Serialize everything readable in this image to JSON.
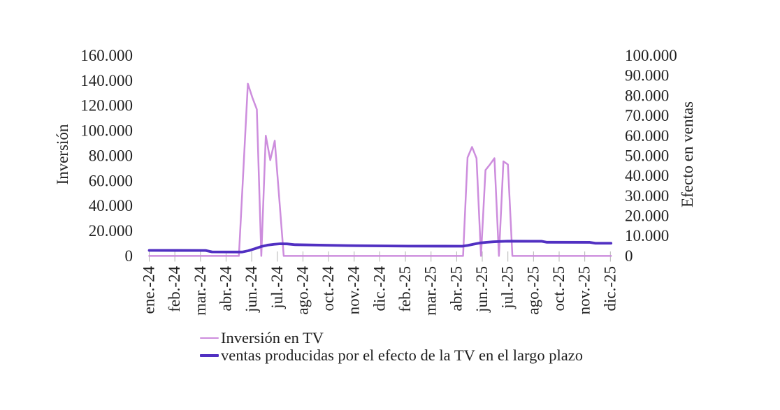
{
  "chart_data": {
    "type": "line",
    "title": "",
    "x_axis": {
      "unit": "date",
      "start_date": "2024-01-01",
      "end_date": "2025-12-22",
      "tick_interval_days": 40,
      "tick_labels": [
        "ene.-24",
        "feb.-24",
        "mar.-24",
        "abr.-24",
        "jun.-24",
        "jul.-24",
        "ago.-24",
        "oct.-24",
        "nov.-24",
        "dic.-24",
        "feb.-25",
        "mar.-25",
        "abr.-25",
        "jun.-25",
        "jul.-25",
        "ago.-25",
        "oct.-25",
        "nov.-25",
        "dic.-25"
      ]
    },
    "y_left": {
      "title": "Inversión",
      "min": 0,
      "max": 160000,
      "step": 20000,
      "tick_labels": [
        "0",
        "20.000",
        "40.000",
        "60.000",
        "80.000",
        "100.000",
        "120.000",
        "140.000",
        "160.000"
      ]
    },
    "y_right": {
      "title": "Efecto en ventas",
      "min": 0,
      "max": 100000,
      "step": 10000,
      "tick_labels": [
        "0",
        "10.000",
        "20.000",
        "30.000",
        "40.000",
        "50.000",
        "60.000",
        "70.000",
        "80.000",
        "90.000",
        "100.000"
      ]
    },
    "grid": "off",
    "legend_position": "bottom",
    "tick_color": "#b3b3b3",
    "text_color": "#1f1f1f",
    "series": [
      {
        "name": "Inversión en TV",
        "axis": "left",
        "color": "#cd8ddd",
        "stroke_width": 2.5,
        "points": [
          [
            "2024-01-01",
            0
          ],
          [
            "2024-05-20",
            0
          ],
          [
            "2024-05-27",
            68500
          ],
          [
            "2024-06-03",
            137500
          ],
          [
            "2024-06-10",
            126500
          ],
          [
            "2024-06-17",
            117000
          ],
          [
            "2024-06-24",
            0
          ],
          [
            "2024-07-01",
            96000
          ],
          [
            "2024-07-08",
            76500
          ],
          [
            "2024-07-15",
            92000
          ],
          [
            "2024-07-22",
            46000
          ],
          [
            "2024-07-29",
            0
          ],
          [
            "2025-05-05",
            0
          ],
          [
            "2025-05-12",
            78500
          ],
          [
            "2025-05-19",
            87000
          ],
          [
            "2025-05-26",
            78000
          ],
          [
            "2025-06-02",
            0
          ],
          [
            "2025-06-09",
            68500
          ],
          [
            "2025-06-16",
            73000
          ],
          [
            "2025-06-23",
            78000
          ],
          [
            "2025-06-30",
            0
          ],
          [
            "2025-07-07",
            75500
          ],
          [
            "2025-07-14",
            73000
          ],
          [
            "2025-07-21",
            0
          ],
          [
            "2025-12-22",
            0
          ]
        ]
      },
      {
        "name": "ventas producidas por el efecto de la TV en el largo plazo",
        "axis": "right",
        "color": "#5130c2",
        "stroke_width": 3.8,
        "points": [
          [
            "2024-01-01",
            2750
          ],
          [
            "2024-03-29",
            2700
          ],
          [
            "2024-04-08",
            2000
          ],
          [
            "2024-05-25",
            1950
          ],
          [
            "2024-06-04",
            2600
          ],
          [
            "2024-06-14",
            3600
          ],
          [
            "2024-06-24",
            4700
          ],
          [
            "2024-07-04",
            5400
          ],
          [
            "2024-07-14",
            5800
          ],
          [
            "2024-07-24",
            6050
          ],
          [
            "2024-08-03",
            6000
          ],
          [
            "2024-08-16",
            5600
          ],
          [
            "2024-11-06",
            5150
          ],
          [
            "2025-02-09",
            4880
          ],
          [
            "2025-05-04",
            4850
          ],
          [
            "2025-05-12",
            5250
          ],
          [
            "2025-05-22",
            5900
          ],
          [
            "2025-06-01",
            6500
          ],
          [
            "2025-06-11",
            6800
          ],
          [
            "2025-06-21",
            7050
          ],
          [
            "2025-07-01",
            7200
          ],
          [
            "2025-07-14",
            7350
          ],
          [
            "2025-09-05",
            7300
          ],
          [
            "2025-09-13",
            6820
          ],
          [
            "2025-11-19",
            6780
          ],
          [
            "2025-11-27",
            6350
          ],
          [
            "2025-12-22",
            6320
          ]
        ]
      }
    ]
  }
}
